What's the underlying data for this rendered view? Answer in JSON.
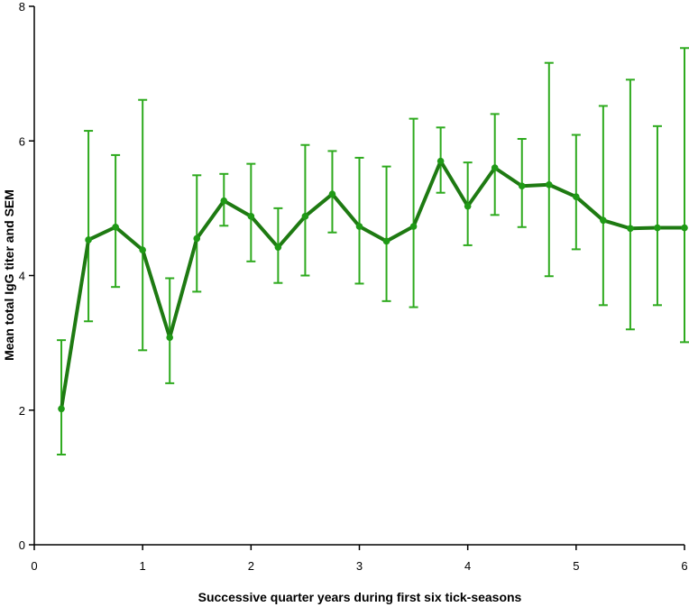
{
  "chart_data": {
    "type": "line",
    "title": "",
    "xlabel": "Successive quarter years during first six tick-seasons",
    "ylabel": "Mean total IgG titer and SEM",
    "xlim": [
      0,
      6
    ],
    "ylim": [
      0,
      8
    ],
    "x_ticks": [
      "0",
      "1",
      "2",
      "3",
      "4",
      "5",
      "6"
    ],
    "y_ticks": [
      "0",
      "2",
      "4",
      "6",
      "8"
    ],
    "grid": false,
    "line_color": "#1e7a12",
    "errorbar_color": "#2eaa1e",
    "marker_color": "#1f9a16",
    "series": [
      {
        "x": [
          0.25,
          0.5,
          0.75,
          1.0,
          1.25,
          1.5,
          1.75,
          2.0,
          2.25,
          2.5,
          2.75,
          3.0,
          3.25,
          3.5,
          3.75,
          4.0,
          4.25,
          4.5,
          4.75,
          5.0,
          5.25,
          5.5,
          5.75,
          6.0
        ],
        "values": [
          2.02,
          4.53,
          4.72,
          4.38,
          3.08,
          4.55,
          5.11,
          4.88,
          4.42,
          4.88,
          5.21,
          4.73,
          4.51,
          4.73,
          5.7,
          5.03,
          5.6,
          5.33,
          5.35,
          5.17,
          4.82,
          4.7,
          4.71,
          4.71
        ],
        "err_low": [
          1.34,
          3.32,
          3.83,
          2.89,
          2.4,
          3.76,
          4.74,
          4.21,
          3.89,
          4.0,
          4.64,
          3.88,
          3.62,
          3.53,
          5.23,
          4.45,
          4.9,
          4.72,
          3.99,
          4.39,
          3.56,
          3.2,
          3.56,
          3.01
        ],
        "err_high": [
          3.04,
          6.15,
          5.79,
          6.61,
          3.96,
          5.49,
          5.51,
          5.66,
          5.0,
          5.94,
          5.85,
          5.75,
          5.62,
          6.33,
          6.2,
          5.68,
          6.4,
          6.03,
          7.16,
          6.09,
          6.52,
          6.91,
          6.22,
          7.38
        ]
      }
    ]
  }
}
